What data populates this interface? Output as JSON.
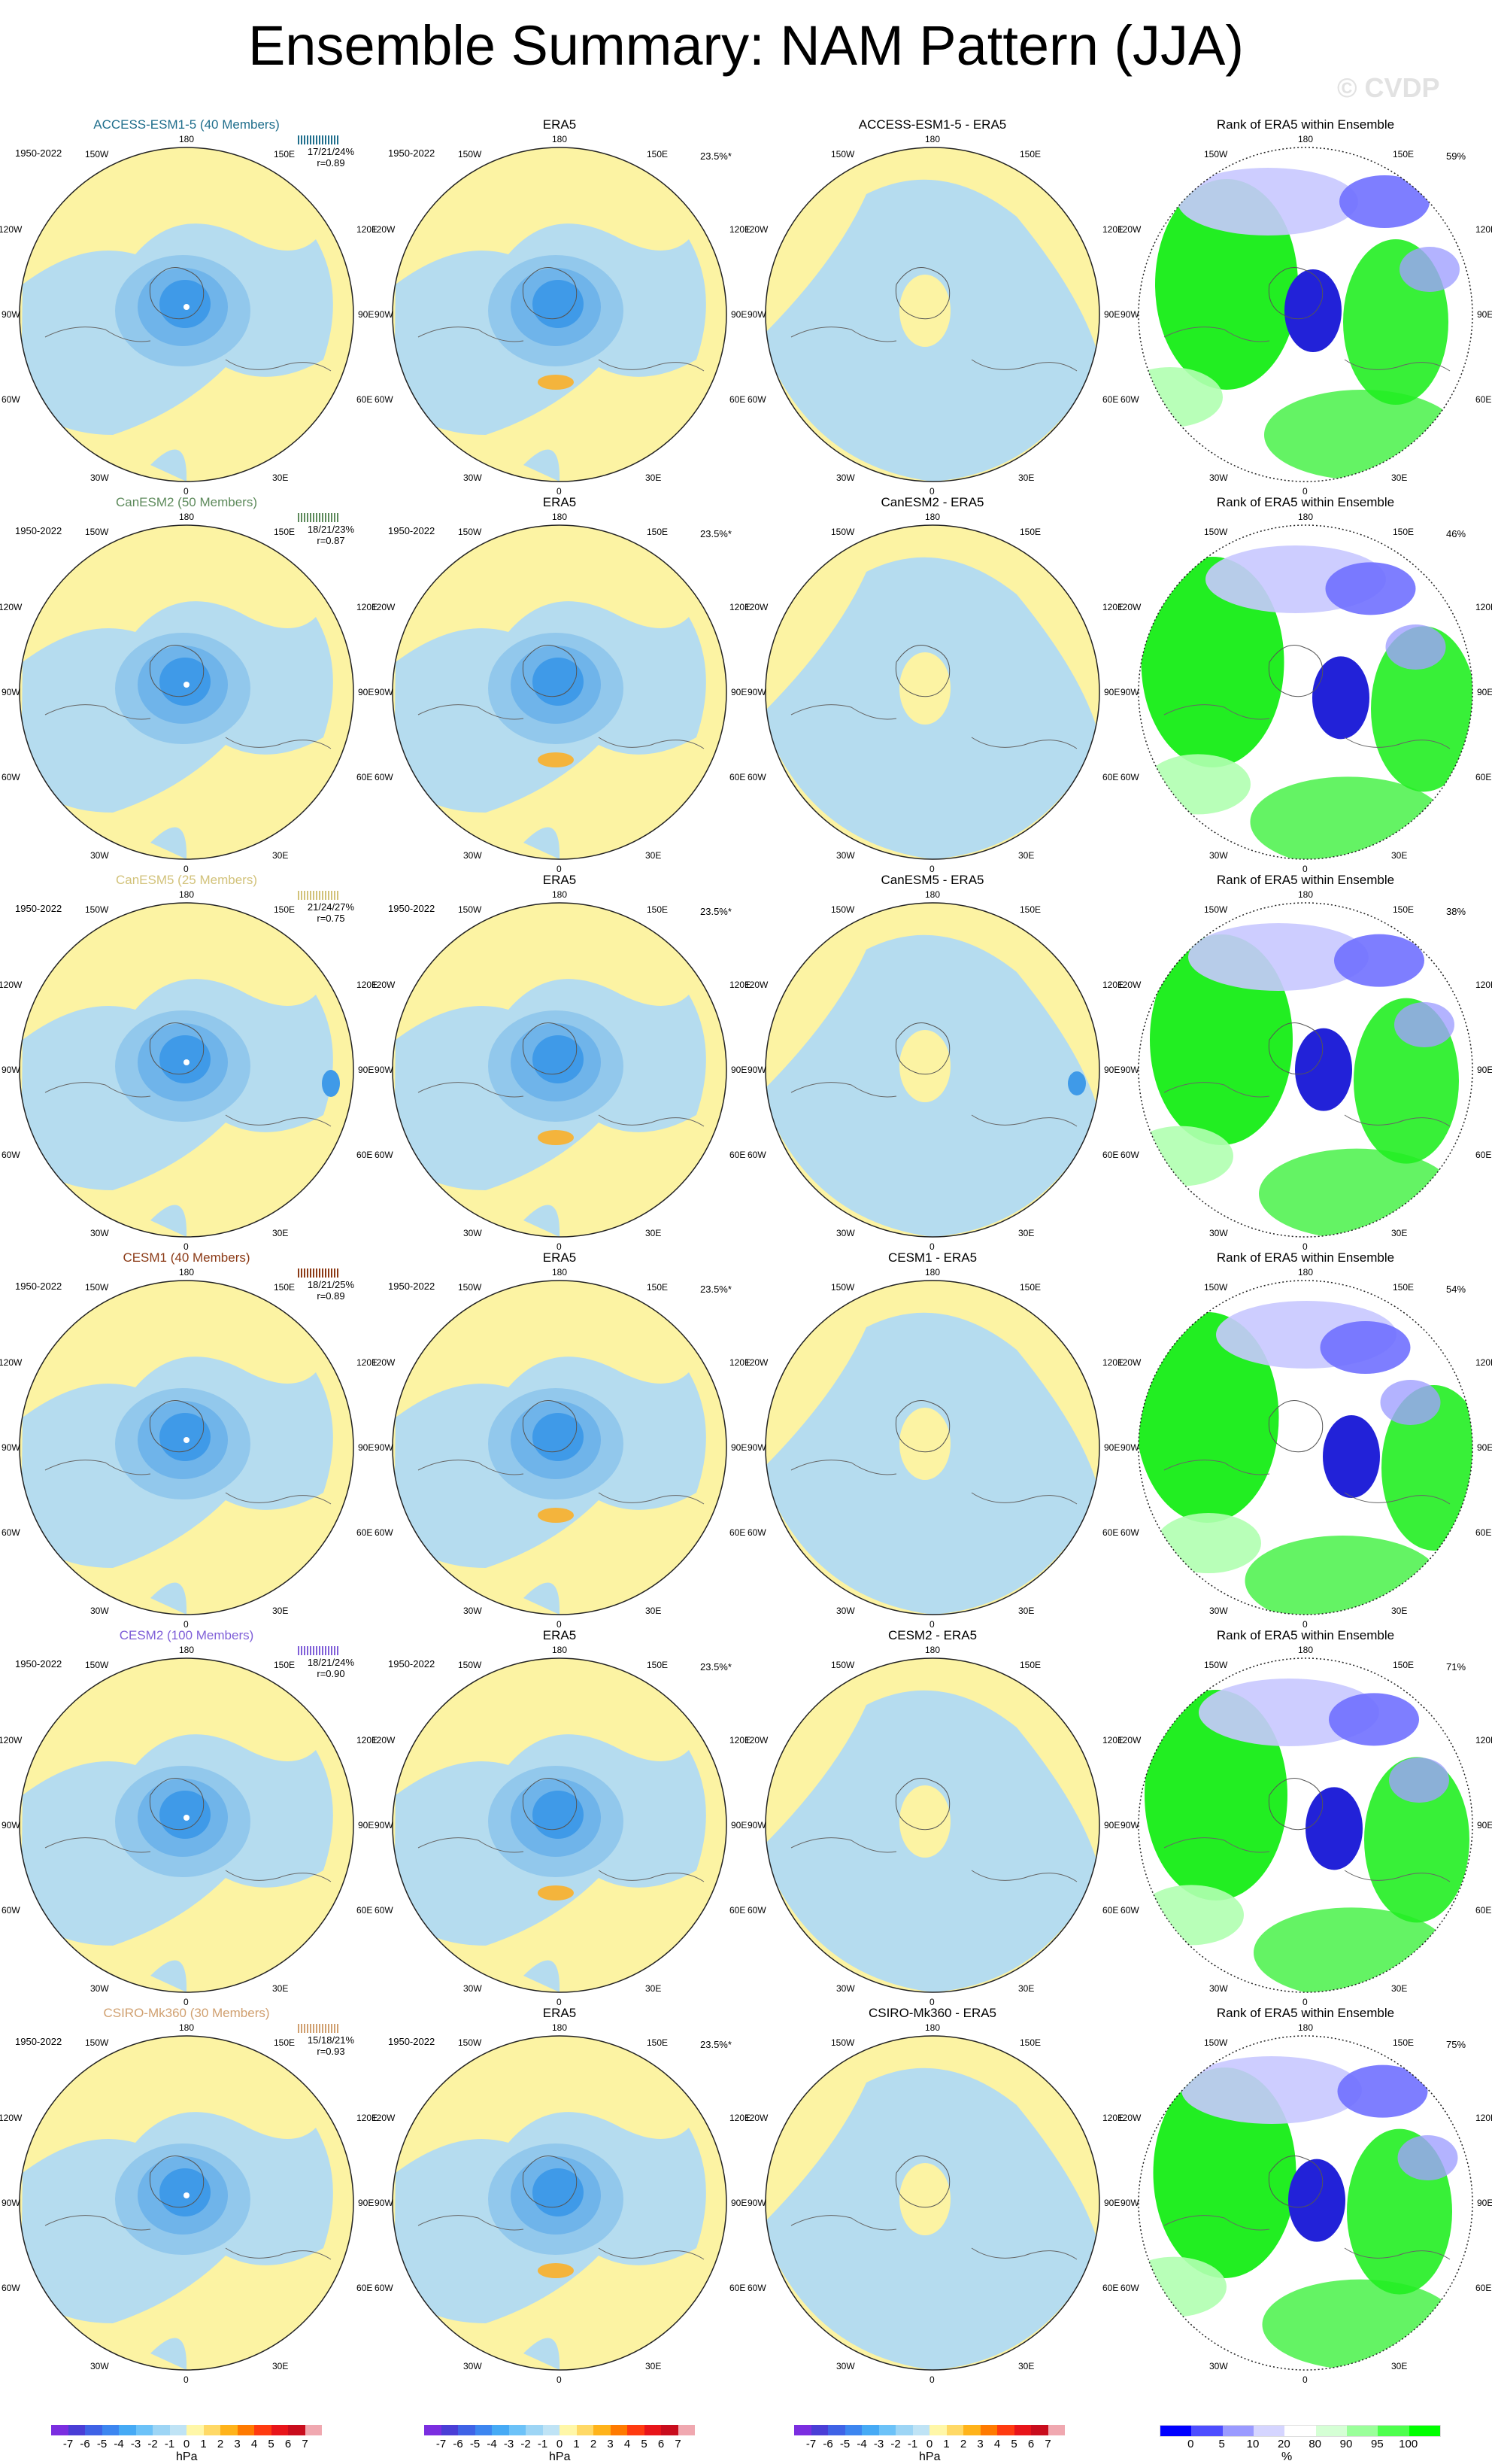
{
  "title": "Ensemble Summary: NAM Pattern (JJA)",
  "watermark": "© CVDP",
  "rows": [
    {
      "model": "ACCESS-ESM1-5 (40 Members)",
      "title_color": "#1f6e8c",
      "period": "1950-2022",
      "stats_line1": "17/21/24%",
      "stats_line2": "r=0.89",
      "era_pct": "23.5%*",
      "diff_title": "ACCESS-ESM1-5 - ERA5",
      "rank_pct": "59%"
    },
    {
      "model": "CanESM2 (50 Members)",
      "title_color": "#5d8a5b",
      "period": "1950-2022",
      "stats_line1": "18/21/23%",
      "stats_line2": "r=0.87",
      "era_pct": "23.5%*",
      "diff_title": "CanESM2 - ERA5",
      "rank_pct": "46%"
    },
    {
      "model": "CanESM5 (25 Members)",
      "title_color": "#d2c27a",
      "period": "1950-2022",
      "stats_line1": "21/24/27%",
      "stats_line2": "r=0.75",
      "era_pct": "23.5%*",
      "diff_title": "CanESM5 - ERA5",
      "rank_pct": "38%"
    },
    {
      "model": "CESM1 (40 Members)",
      "title_color": "#8b3a16",
      "period": "1950-2022",
      "stats_line1": "18/21/25%",
      "stats_line2": "r=0.89",
      "era_pct": "23.5%*",
      "diff_title": "CESM1 - ERA5",
      "rank_pct": "54%"
    },
    {
      "model": "CESM2 (100 Members)",
      "title_color": "#7f5fd8",
      "period": "1950-2022",
      "stats_line1": "18/21/24%",
      "stats_line2": "r=0.90",
      "era_pct": "23.5%*",
      "diff_title": "CESM2 - ERA5",
      "rank_pct": "71%"
    },
    {
      "model": "CSIRO-Mk360 (30 Members)",
      "title_color": "#d0a070",
      "period": "1950-2022",
      "stats_line1": "15/18/21%",
      "stats_line2": "r=0.93",
      "era_pct": "23.5%*",
      "diff_title": "CSIRO-Mk360 - ERA5",
      "rank_pct": "75%"
    }
  ],
  "obs_title": "ERA5",
  "rank_title": "Rank of ERA5 within Ensemble",
  "map_labels": {
    "top": "180",
    "bottom": "0",
    "left": "90W",
    "right": "90E",
    "ul1": "150W",
    "ur1": "150E",
    "ul2": "120W",
    "ur2": "120E",
    "ll1": "60W",
    "lr1": "60E",
    "ll2": "30W",
    "lr2": "30E"
  },
  "colorbars": {
    "hpa_labels": [
      "-7",
      "-6",
      "-5",
      "-4",
      "-3",
      "-2",
      "-1",
      "0",
      "1",
      "2",
      "3",
      "4",
      "5",
      "6",
      "7"
    ],
    "hpa_colors": [
      "#7b2ee0",
      "#4a3ed6",
      "#3f63e6",
      "#3d86f0",
      "#46aaf5",
      "#6cc2f8",
      "#9dd5f5",
      "#bfe3f5",
      "#fff7a8",
      "#ffd966",
      "#ffb31a",
      "#ff7a00",
      "#ff3b10",
      "#e8151a",
      "#c90d1d",
      "#f0a8b0"
    ],
    "hpa_unit": "hPa",
    "pct_labels": [
      "0",
      "5",
      "10",
      "20",
      "80",
      "90",
      "95",
      "100"
    ],
    "pct_colors": [
      "#0000ff",
      "#4d4dff",
      "#9a9aff",
      "#d5d5ff",
      "#ffffff",
      "#d5ffd5",
      "#9aff9a",
      "#4dff4d",
      "#00ff00"
    ],
    "pct_unit": "%"
  },
  "palette": {
    "ocean": "#b5dcef",
    "land_pos": "#fcf3a3",
    "neg1": "#92c8ec",
    "neg2": "#6fb4ea",
    "neg3": "#3f9ae8",
    "pos_orange": "#f4b43c",
    "rank_blue": "#2222d8",
    "rank_green": "#22ee22"
  }
}
